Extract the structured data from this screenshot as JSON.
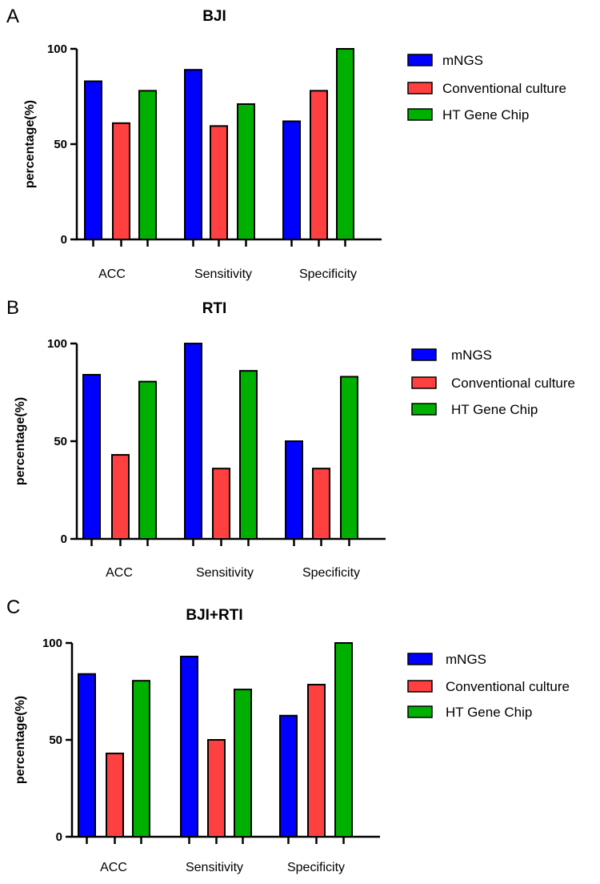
{
  "colors": {
    "mngs": "#0000ff",
    "culture": "#ff4040",
    "chip": "#00b000",
    "stroke": "#000000"
  },
  "chart_data": [
    {
      "type": "bar",
      "panel_label": "A",
      "title": "BJI",
      "ylabel": "percentage(%)",
      "xlabel": "",
      "ylim": [
        0,
        100
      ],
      "yticks": [
        "0",
        "50",
        "100"
      ],
      "categories": [
        "ACC",
        "Sensitivity",
        "Specificity"
      ],
      "series": [
        {
          "name": "mNGS",
          "values": [
            83,
            89,
            62
          ]
        },
        {
          "name": "Conventional culture",
          "values": [
            61,
            59.5,
            78
          ]
        },
        {
          "name": "HT Gene Chip",
          "values": [
            78,
            71,
            100
          ]
        }
      ],
      "legend": "right"
    },
    {
      "type": "bar",
      "panel_label": "B",
      "title": "RTI",
      "ylabel": "percentage(%)",
      "xlabel": "",
      "ylim": [
        0,
        100
      ],
      "yticks": [
        "0",
        "50",
        "100"
      ],
      "categories": [
        "ACC",
        "Sensitivity",
        "Specificity"
      ],
      "series": [
        {
          "name": "mNGS",
          "values": [
            84,
            100,
            50
          ]
        },
        {
          "name": "Conventional culture",
          "values": [
            43,
            36,
            36
          ]
        },
        {
          "name": "HT Gene Chip",
          "values": [
            80.5,
            86,
            83
          ]
        }
      ],
      "legend": "right"
    },
    {
      "type": "bar",
      "panel_label": "C",
      "title": "BJI+RTI",
      "ylabel": "percentage(%)",
      "xlabel": "",
      "ylim": [
        0,
        100
      ],
      "yticks": [
        "0",
        "50",
        "100"
      ],
      "categories": [
        "ACC",
        "Sensitivity",
        "Specificity"
      ],
      "series": [
        {
          "name": "mNGS",
          "values": [
            84,
            93,
            62.5
          ]
        },
        {
          "name": "Conventional culture",
          "values": [
            43,
            50,
            78.5
          ]
        },
        {
          "name": "HT Gene Chip",
          "values": [
            80.5,
            76,
            100
          ]
        }
      ],
      "legend": "right"
    }
  ]
}
